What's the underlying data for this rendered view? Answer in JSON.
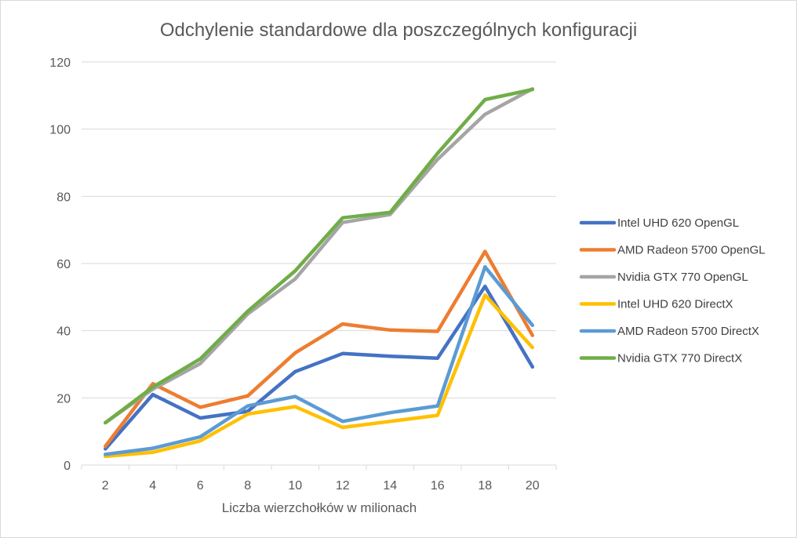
{
  "chart_data": {
    "type": "line",
    "title": "Odchylenie standardowe dla poszczególnych  konfiguracji",
    "xlabel": "Liczba wierzchołków w milionach",
    "ylabel": "",
    "x": [
      2,
      4,
      6,
      8,
      10,
      12,
      14,
      16,
      18,
      20
    ],
    "ylim": [
      0,
      120
    ],
    "yticks": [
      0,
      20,
      40,
      60,
      80,
      100,
      120
    ],
    "grid": "horizontal",
    "legend_position": "right",
    "series": [
      {
        "name": "Intel UHD 620 OpenGL",
        "color": "#4472C4",
        "values": [
          4.8,
          21.0,
          14.0,
          16.0,
          27.8,
          33.2,
          32.4,
          31.8,
          53.2,
          29.2
        ]
      },
      {
        "name": "AMD Radeon 5700 OpenGL",
        "color": "#ED7D31",
        "values": [
          5.6,
          24.2,
          17.2,
          20.6,
          33.4,
          42.0,
          40.2,
          39.8,
          63.6,
          38.6
        ]
      },
      {
        "name": "Nvidia GTX 770 OpenGL",
        "color": "#A5A5A5",
        "values": [
          12.6,
          22.6,
          30.2,
          45.0,
          55.4,
          72.2,
          74.6,
          91.0,
          104.4,
          112.0
        ]
      },
      {
        "name": "Intel UHD 620 DirectX",
        "color": "#FFC000",
        "values": [
          2.6,
          3.8,
          7.2,
          15.2,
          17.4,
          11.2,
          13.0,
          14.8,
          50.6,
          35.0
        ]
      },
      {
        "name": "AMD Radeon 5700 DirectX",
        "color": "#5B9BD5",
        "values": [
          3.2,
          5.0,
          8.4,
          17.6,
          20.4,
          13.0,
          15.6,
          17.6,
          59.0,
          41.6
        ]
      },
      {
        "name": "Nvidia GTX 770 DirectX",
        "color": "#70AD47",
        "values": [
          12.6,
          23.2,
          31.6,
          45.8,
          57.8,
          73.6,
          75.2,
          92.8,
          108.8,
          111.8
        ]
      }
    ]
  }
}
